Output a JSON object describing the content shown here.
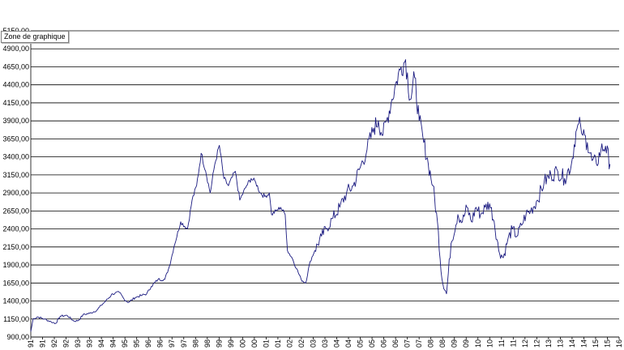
{
  "tooltip": {
    "label": "Zone de graphique"
  },
  "colors": {
    "series": "#1a1a80",
    "grid": "#000000",
    "background": "#ffffff"
  },
  "chart_data": {
    "type": "line",
    "title": "",
    "xlabel": "",
    "ylabel": "",
    "grid": true,
    "legend": "none",
    "ylim": [
      900,
      5150
    ],
    "xlim": [
      1991,
      2016.9
    ],
    "y_ticks": [
      "900,00",
      "1150,00",
      "1400,00",
      "1650,00",
      "1900,00",
      "2150,00",
      "2400,00",
      "2650,00",
      "2900,00",
      "3150,00",
      "3400,00",
      "3650,00",
      "3900,00",
      "4150,00",
      "4400,00",
      "4650,00",
      "4900,00",
      "5150,00"
    ],
    "x_ticks": [
      "91",
      "91",
      "92",
      "92",
      "93",
      "93",
      "94",
      "94",
      "95",
      "95",
      "96",
      "96",
      "97",
      "97",
      "98",
      "98",
      "99",
      "99",
      "00",
      "00",
      "01",
      "01",
      "02",
      "02",
      "03",
      "03",
      "04",
      "04",
      "05",
      "05",
      "06",
      "06",
      "07",
      "07",
      "08",
      "08",
      "09",
      "09",
      "10",
      "10",
      "11",
      "11",
      "12",
      "12",
      "13",
      "13",
      "14",
      "14",
      "15",
      "15",
      "16"
    ],
    "series": [
      {
        "x": [
          1991.0,
          1991.1,
          1991.3,
          1991.6,
          1991.9,
          1992.1,
          1992.3,
          1992.6,
          1992.9,
          1993.1,
          1993.3,
          1993.6,
          1993.9,
          1994.1,
          1994.3,
          1994.6,
          1994.9,
          1995.1,
          1995.3,
          1995.6,
          1995.9,
          1996.1,
          1996.3,
          1996.6,
          1996.9,
          1997.1,
          1997.3,
          1997.6,
          1997.9,
          1998.1,
          1998.3,
          1998.5,
          1998.7,
          1998.9,
          1999.1,
          1999.3,
          1999.5,
          1999.7,
          2000.0,
          2000.2,
          2000.5,
          2000.7,
          2000.9,
          2001.1,
          2001.3,
          2001.5,
          2001.6,
          2001.8,
          2002.0,
          2002.2,
          2002.3,
          2002.5,
          2002.7,
          2002.9,
          2003.1,
          2003.3,
          2003.5,
          2003.8,
          2004.0,
          2004.3,
          2004.6,
          2004.9,
          2005.2,
          2005.5,
          2005.8,
          2006.1,
          2006.3,
          2006.5,
          2006.7,
          2006.9,
          2007.1,
          2007.3,
          2007.5,
          2007.7,
          2007.9,
          2008.1,
          2008.3,
          2008.5,
          2008.7,
          2008.9,
          2009.1,
          2009.3,
          2009.5,
          2009.8,
          2010.0,
          2010.2,
          2010.4,
          2010.6,
          2010.8,
          2011.0,
          2011.2,
          2011.4,
          2011.6,
          2011.8,
          2012.0,
          2012.2,
          2012.4,
          2012.6,
          2012.8,
          2013.0,
          2013.3,
          2013.6,
          2013.9,
          2014.2,
          2014.5,
          2014.8,
          2015.0,
          2015.2,
          2015.3,
          2015.5,
          2015.7,
          2015.9,
          2016.1,
          2016.3,
          2016.5
        ],
        "y": [
          975,
          1150,
          1180,
          1150,
          1110,
          1090,
          1190,
          1200,
          1120,
          1130,
          1210,
          1230,
          1270,
          1340,
          1400,
          1500,
          1520,
          1430,
          1380,
          1450,
          1480,
          1500,
          1600,
          1700,
          1700,
          1880,
          2150,
          2500,
          2400,
          2800,
          3000,
          3450,
          3200,
          2900,
          3300,
          3560,
          3100,
          3000,
          3200,
          2800,
          3000,
          3100,
          3050,
          2900,
          2850,
          2900,
          2600,
          2650,
          2700,
          2600,
          2100,
          2000,
          1850,
          1700,
          1650,
          1950,
          2100,
          2300,
          2400,
          2550,
          2700,
          2900,
          3000,
          3250,
          3500,
          3800,
          3900,
          3700,
          3950,
          4200,
          4450,
          4650,
          4750,
          4200,
          4500,
          3900,
          3600,
          3300,
          3000,
          2500,
          1700,
          1500,
          2200,
          2600,
          2500,
          2700,
          2500,
          2700,
          2600,
          2700,
          2750,
          2500,
          2100,
          2000,
          2250,
          2400,
          2300,
          2450,
          2600,
          2650,
          2800,
          3050,
          3150,
          3200,
          3100,
          3300,
          3750,
          3850,
          3700,
          3600,
          3350,
          3300,
          3500,
          3550,
          3300
        ]
      }
    ]
  }
}
